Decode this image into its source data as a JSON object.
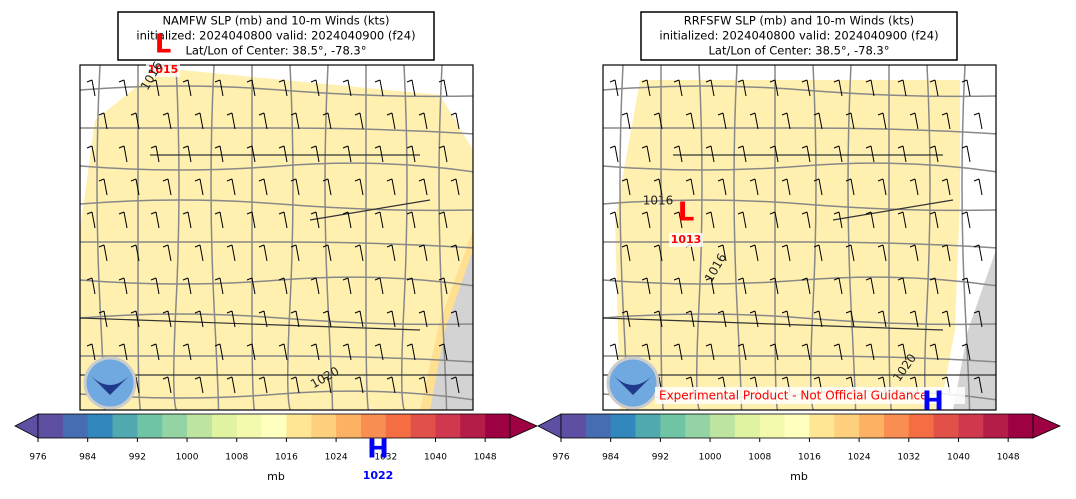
{
  "panels": [
    {
      "title": [
        "NAMFW SLP (mb) and 10-m Winds (kts)",
        "initialized: 2024040800 valid: 2024040900 (f24)",
        "Lat/Lon of Center: 38.5°, -78.3°"
      ],
      "lows": [
        {
          "symbol": "L",
          "value": 1015
        }
      ],
      "highs": [
        {
          "symbol": "H",
          "value": 1022
        }
      ],
      "contour_labels": [
        1016,
        1020
      ]
    },
    {
      "title": [
        "RRFSFW SLP (mb) and 10-m Winds (kts)",
        "initialized: 2024040800 valid: 2024040900 (f24)",
        "Lat/Lon of Center: 38.5°, -78.3°"
      ],
      "lows": [
        {
          "symbol": "L",
          "value": 1013
        }
      ],
      "highs": [
        {
          "symbol": "H"
        }
      ],
      "contour_labels": [
        1016,
        1016,
        1020
      ],
      "banner": "Experimental Product - Not Official Guidance"
    }
  ],
  "colorbar": {
    "label": "mb",
    "bounds": [
      976,
      980,
      984,
      988,
      992,
      996,
      1000,
      1004,
      1008,
      1012,
      1016,
      1020,
      1024,
      1028,
      1032,
      1036,
      1040,
      1044,
      1048,
      1052
    ],
    "ticks": [
      976,
      984,
      992,
      1000,
      1008,
      1016,
      1024,
      1032,
      1040,
      1048
    ],
    "colors": [
      "#5e4fa2",
      "#466db1",
      "#3288bd",
      "#50a9af",
      "#6ec4a4",
      "#94d4a4",
      "#bee5a0",
      "#e0f3a1",
      "#f3faad",
      "#ffffbf",
      "#fee695",
      "#fed07e",
      "#fdb163",
      "#f98e52",
      "#f46d43",
      "#e1514a",
      "#d0384e",
      "#b41d47",
      "#9e0142"
    ]
  }
}
